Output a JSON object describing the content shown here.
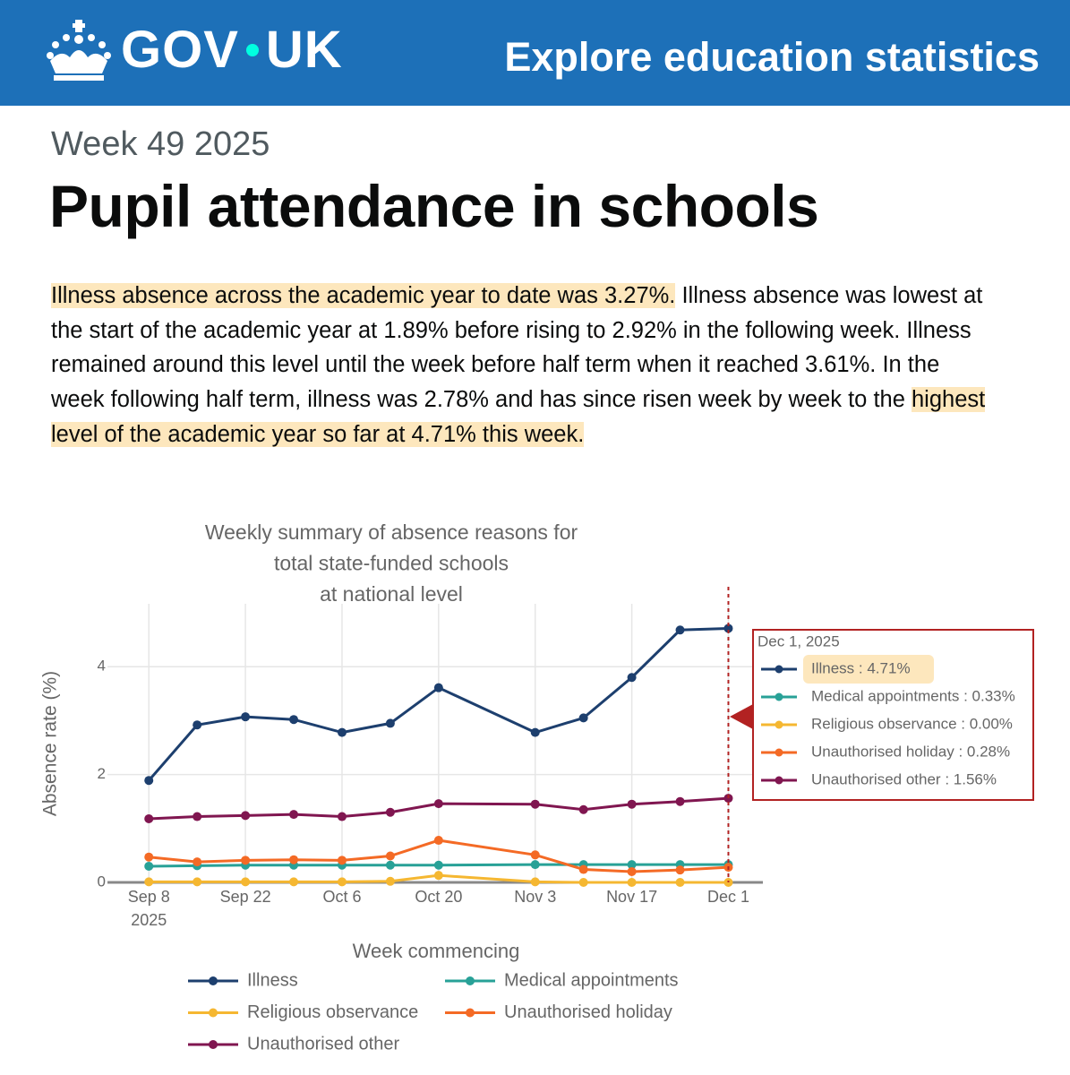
{
  "header": {
    "brand_left": "GOV",
    "brand_right": "UK",
    "service": "Explore education statistics"
  },
  "caption": "Week 49 2025",
  "heading": "Pupil attendance in schools",
  "summary": [
    {
      "text": "Illness absence across the academic year to date was 3.27%.",
      "highlight": true
    },
    {
      "text": " Illness absence was lowest at the start of the academic year at 1.89% before rising to 2.92% in the following week. Illness remained around this level until the week before half term when it reached 3.61%. In the week following half term, illness was 2.78% and has since risen week by week to the ",
      "highlight": false
    },
    {
      "text": "highest level of the academic year so far at 4.71% this week.",
      "highlight": true
    }
  ],
  "chart_data": {
    "type": "line",
    "title": [
      "Weekly summary of absence reasons for",
      "total state-funded schools",
      "at national level"
    ],
    "x_label": "Week commencing",
    "y_label": "Absence rate (%)",
    "x": [
      "2025-09-08",
      "2025-09-15",
      "2025-09-22",
      "2025-09-29",
      "2025-10-06",
      "2025-10-13",
      "2025-10-20",
      "2025-11-03",
      "2025-11-10",
      "2025-11-17",
      "2025-11-24",
      "2025-12-01"
    ],
    "xlim": [
      "2025-09-02",
      "2025-12-06"
    ],
    "xticks": [
      {
        "value": "2025-09-08",
        "label": "Sep 8 2025"
      },
      {
        "value": "2025-09-22",
        "label": "Sep 22"
      },
      {
        "value": "2025-10-06",
        "label": "Oct 6"
      },
      {
        "value": "2025-10-20",
        "label": "Oct 20"
      },
      {
        "value": "2025-11-03",
        "label": "Nov 3"
      },
      {
        "value": "2025-11-17",
        "label": "Nov 17"
      },
      {
        "value": "2025-12-01",
        "label": "Dec 1"
      }
    ],
    "ylim": [
      0,
      5
    ],
    "yticks": [
      0,
      2,
      4
    ],
    "grid": true,
    "series": [
      {
        "name": "Illness",
        "color": "#1d3f6e",
        "values": [
          1.89,
          2.92,
          3.07,
          3.02,
          2.78,
          2.95,
          3.61,
          2.78,
          3.05,
          3.8,
          4.68,
          4.71
        ]
      },
      {
        "name": "Medical appointments",
        "color": "#28a197",
        "values": [
          0.3,
          0.31,
          0.32,
          0.32,
          0.32,
          0.32,
          0.32,
          0.33,
          0.33,
          0.33,
          0.33,
          0.33
        ]
      },
      {
        "name": "Religious observance",
        "color": "#f5b731",
        "values": [
          0.01,
          0.01,
          0.01,
          0.01,
          0.01,
          0.02,
          0.13,
          0.01,
          0,
          0,
          0,
          0
        ]
      },
      {
        "name": "Unauthorised holiday",
        "color": "#f46a25",
        "values": [
          0.47,
          0.38,
          0.41,
          0.42,
          0.41,
          0.49,
          0.78,
          0.51,
          0.24,
          0.2,
          0.23,
          0.28
        ]
      },
      {
        "name": "Unauthorised other",
        "color": "#801650",
        "values": [
          1.18,
          1.22,
          1.24,
          1.26,
          1.22,
          1.3,
          1.46,
          1.45,
          1.35,
          1.45,
          1.5,
          1.56
        ]
      }
    ],
    "tooltip": {
      "title": "Dec 1, 2025",
      "items": [
        "Illness : 4.71%",
        "Medical appointments : 0.33%",
        "Religious observance : 0.00%",
        "Unauthorised holiday : 0.28%",
        "Unauthorised other : 1.56%"
      ]
    }
  }
}
